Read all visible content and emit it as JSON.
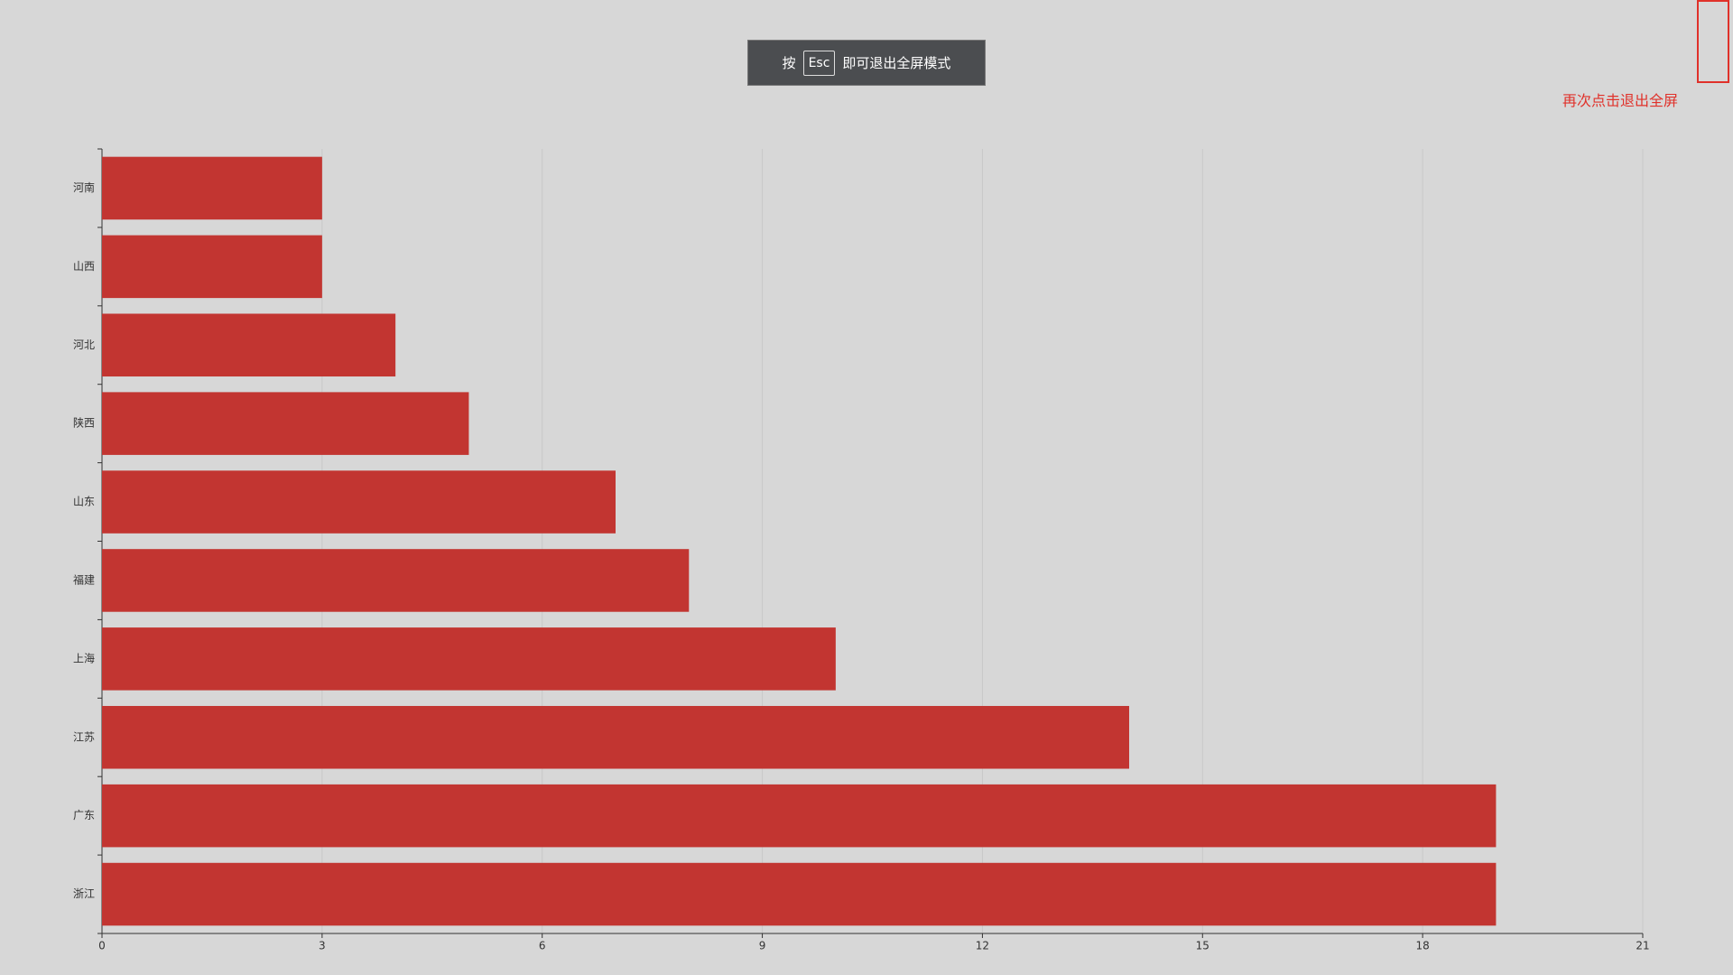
{
  "overlay": {
    "press": "按",
    "key": "Esc",
    "message": "即可退出全屏模式"
  },
  "exit_hint": "再次点击退出全屏",
  "chart_data": {
    "type": "bar",
    "orientation": "horizontal",
    "categories": [
      "河南",
      "山西",
      "河北",
      "陕西",
      "山东",
      "福建",
      "上海",
      "江苏",
      "广东",
      "浙江"
    ],
    "values": [
      3,
      3,
      4,
      5,
      7,
      8,
      10,
      14,
      19,
      19
    ],
    "color": "#c23531",
    "xlim": [
      0,
      21
    ],
    "xticks": [
      0,
      3,
      6,
      9,
      12,
      15,
      18,
      21
    ],
    "grid": true
  }
}
